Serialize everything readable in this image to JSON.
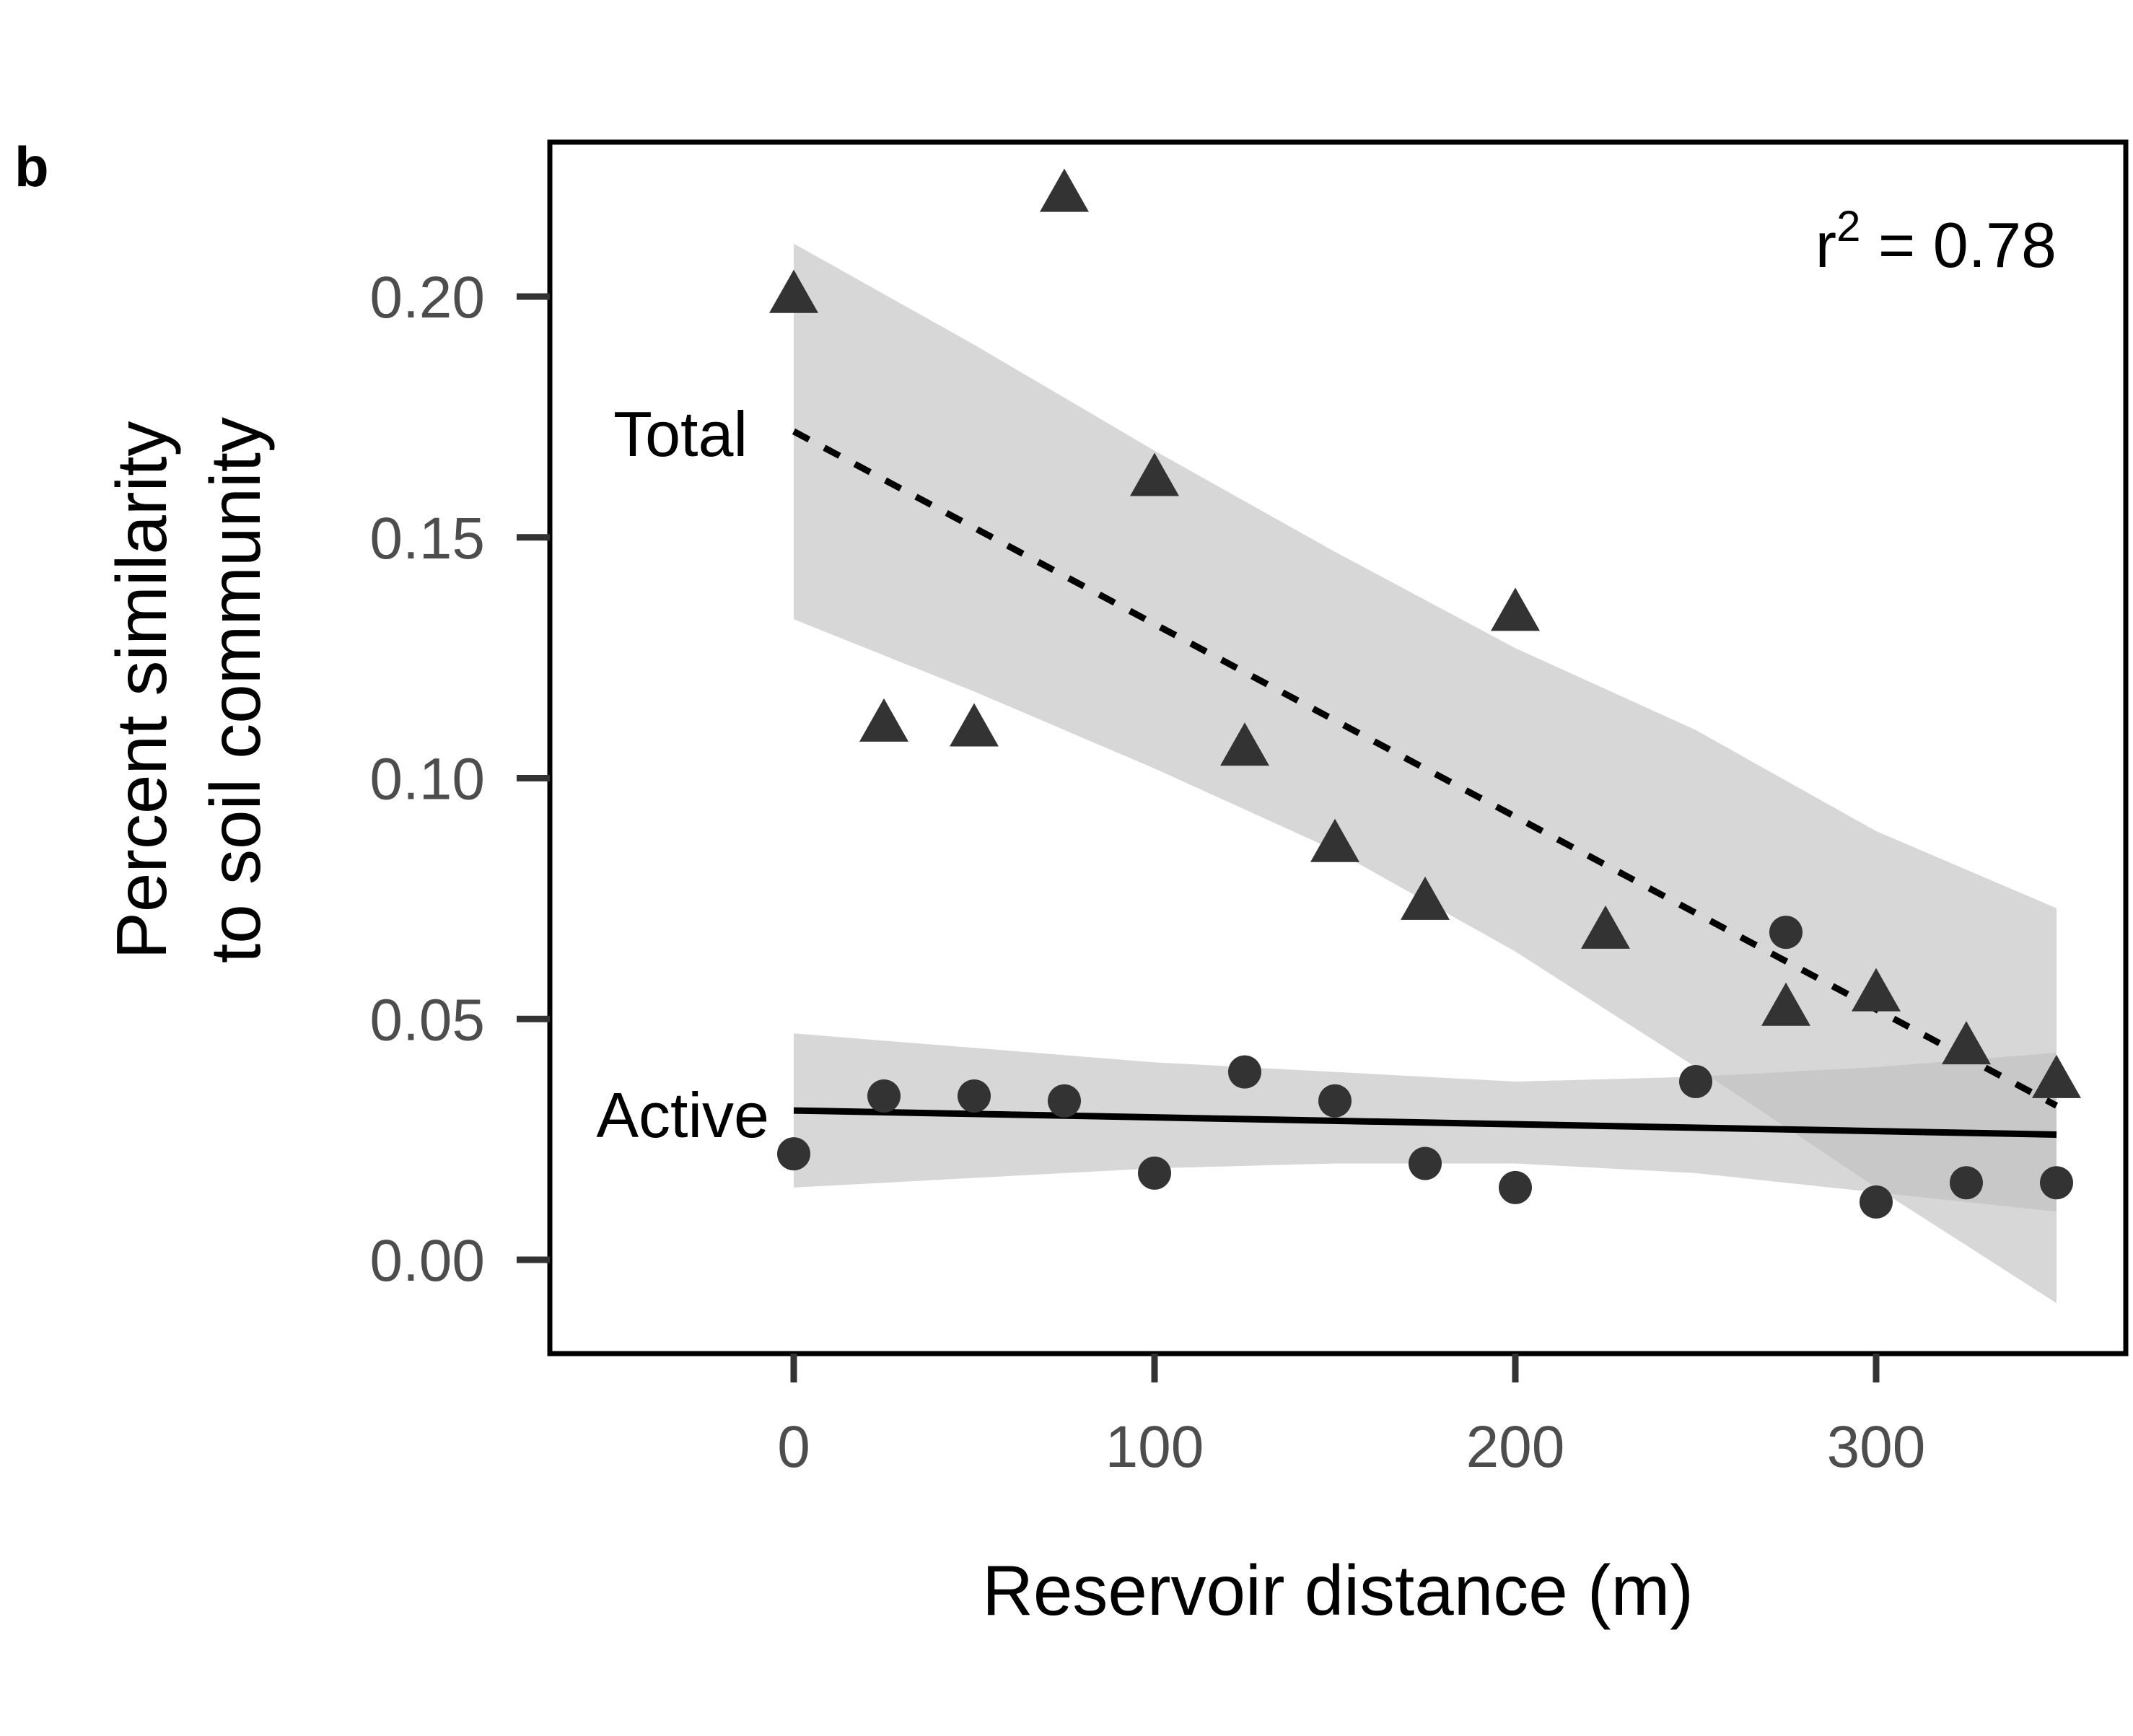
{
  "panel_label": "b",
  "chart_data": {
    "type": "scatter",
    "xlabel": "Reservoir distance (m)",
    "ylabel_lines": [
      "Percent similarity",
      "to soil community"
    ],
    "xlim": [
      -67,
      370
    ],
    "ylim": [
      -0.02,
      0.232
    ],
    "xticks": [
      0,
      100,
      200,
      300
    ],
    "yticks": [
      0.0,
      0.05,
      0.1,
      0.15,
      0.2
    ],
    "xtick_labels": [
      "0",
      "100",
      "200",
      "300"
    ],
    "ytick_labels": [
      "0.00",
      "0.05",
      "0.10",
      "0.15",
      "0.20"
    ],
    "grid": false,
    "annotation": {
      "base": "r",
      "sup": "2",
      "rest": " = 0.78"
    },
    "series": [
      {
        "label": "Total",
        "marker": "triangle",
        "fit": "dashed",
        "x": [
          0,
          25,
          50,
          75,
          100,
          125,
          150,
          175,
          200,
          225,
          275,
          300,
          325,
          350
        ],
        "y": [
          0.2,
          0.111,
          0.11,
          0.221,
          0.162,
          0.106,
          0.086,
          0.074,
          0.134,
          0.068,
          0.052,
          0.055,
          0.044,
          0.037
        ],
        "fit_line": {
          "x": [
            0,
            350
          ],
          "y": [
            0.172,
            0.032
          ]
        },
        "band": {
          "x": [
            0,
            50,
            100,
            150,
            200,
            250,
            300,
            350
          ],
          "upper": [
            0.211,
            0.19,
            0.168,
            0.147,
            0.127,
            0.11,
            0.089,
            0.073
          ],
          "lower": [
            0.133,
            0.118,
            0.102,
            0.085,
            0.064,
            0.04,
            0.015,
            -0.009
          ]
        }
      },
      {
        "label": "Active",
        "marker": "circle",
        "fit": "solid",
        "x": [
          0,
          25,
          50,
          75,
          100,
          125,
          150,
          175,
          200,
          250,
          275,
          300,
          325,
          350
        ],
        "y": [
          0.022,
          0.034,
          0.034,
          0.033,
          0.018,
          0.039,
          0.033,
          0.02,
          0.015,
          0.037,
          0.068,
          0.012,
          0.016,
          0.016
        ],
        "fit_line": {
          "x": [
            0,
            350
          ],
          "y": [
            0.031,
            0.026
          ]
        },
        "band": {
          "x": [
            0,
            50,
            100,
            150,
            200,
            250,
            300,
            350
          ],
          "upper": [
            0.047,
            0.044,
            0.041,
            0.039,
            0.037,
            0.038,
            0.04,
            0.043
          ],
          "lower": [
            0.015,
            0.017,
            0.019,
            0.02,
            0.02,
            0.018,
            0.014,
            0.01
          ]
        }
      }
    ],
    "colors": {
      "marker": "#333333",
      "band": "#bfbfbf",
      "fit": "#000000",
      "axis": "#333333"
    }
  }
}
